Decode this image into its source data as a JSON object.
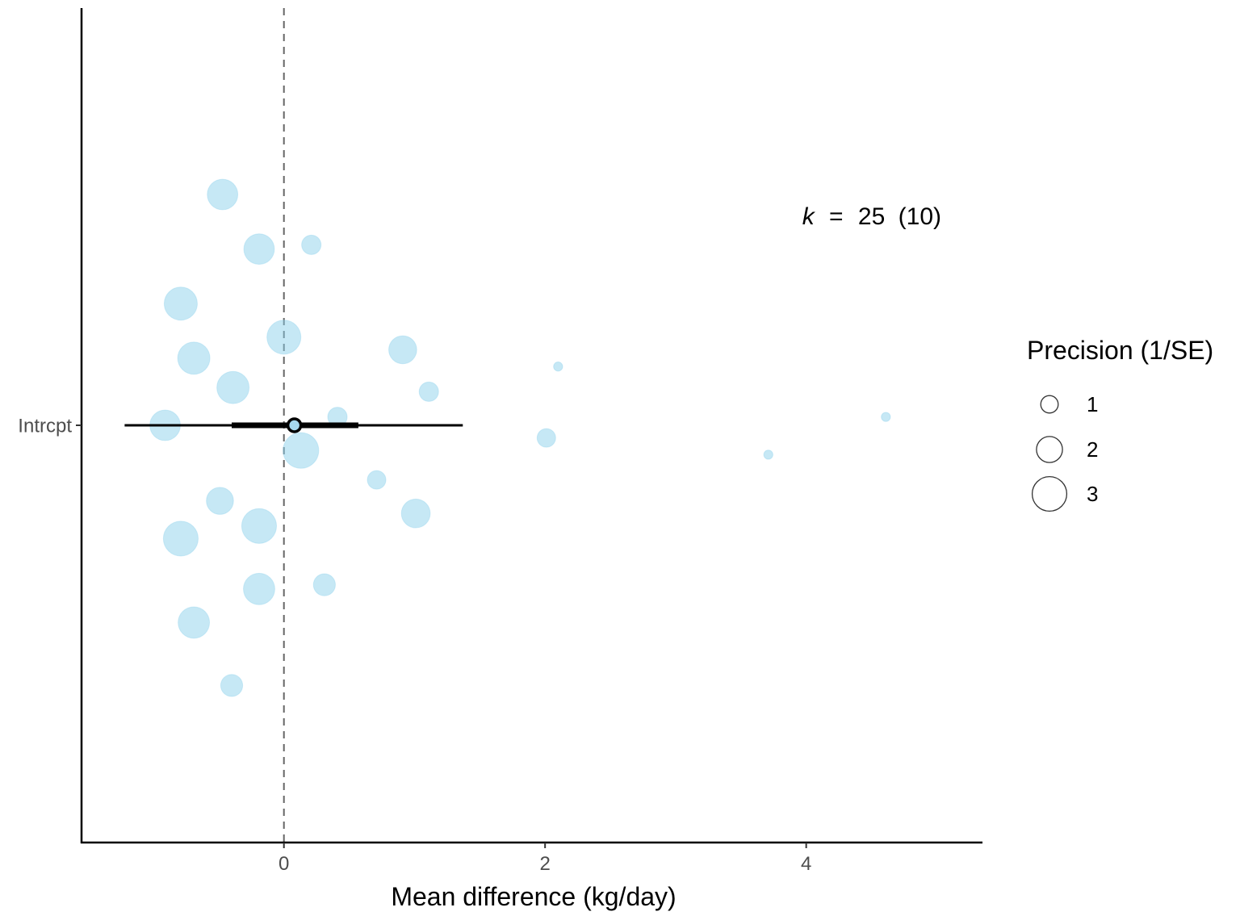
{
  "chart_data": {
    "type": "scatter",
    "subtype": "orchard plot",
    "xlabel": "Mean difference (kg/day)",
    "ylabel": "",
    "xlim": [
      -1.55,
      5.35
    ],
    "x_ticks": [
      0,
      2,
      4
    ],
    "x_tick_labels": [
      "0",
      "2",
      "4"
    ],
    "y_category": "Intrcpt",
    "reference_line_x": 0,
    "annotation": {
      "k_symbol": "k",
      "equals": "=",
      "k": "25",
      "groups": "(10)"
    },
    "estimate": {
      "x": 0.08,
      "ci": [
        -0.4,
        0.57
      ],
      "pi": [
        -1.22,
        1.37
      ]
    },
    "colors": {
      "points": "#87ceeb",
      "estimate_fill": "#a6d8ee",
      "axis": "#000000",
      "ref_line": "#666666"
    },
    "legend": {
      "title": "Precision (1/SE)",
      "items": [
        {
          "label": "1",
          "precision": 1
        },
        {
          "label": "2",
          "precision": 2
        },
        {
          "label": "3",
          "precision": 3
        }
      ],
      "placement": "right"
    },
    "points": [
      {
        "x": -0.47,
        "y_offset": 0.55,
        "precision": 3.0
      },
      {
        "x": -0.19,
        "y_offset": 0.42,
        "precision": 3.0
      },
      {
        "x": 0.21,
        "y_offset": 0.43,
        "precision": 1.7
      },
      {
        "x": -0.79,
        "y_offset": 0.29,
        "precision": 3.3
      },
      {
        "x": 0.0,
        "y_offset": 0.21,
        "precision": 3.4
      },
      {
        "x": -0.69,
        "y_offset": 0.16,
        "precision": 3.2
      },
      {
        "x": 0.91,
        "y_offset": 0.18,
        "precision": 2.7
      },
      {
        "x": 2.1,
        "y_offset": 0.14,
        "precision": 0.5
      },
      {
        "x": -0.39,
        "y_offset": 0.09,
        "precision": 3.2
      },
      {
        "x": 1.11,
        "y_offset": 0.08,
        "precision": 1.7
      },
      {
        "x": 0.41,
        "y_offset": 0.02,
        "precision": 1.7
      },
      {
        "x": -0.91,
        "y_offset": 0.0,
        "precision": 3.0
      },
      {
        "x": 4.61,
        "y_offset": 0.02,
        "precision": 0.5
      },
      {
        "x": 2.01,
        "y_offset": -0.03,
        "precision": 1.6
      },
      {
        "x": 0.13,
        "y_offset": -0.06,
        "precision": 3.6
      },
      {
        "x": 3.71,
        "y_offset": -0.07,
        "precision": 0.5
      },
      {
        "x": 0.71,
        "y_offset": -0.13,
        "precision": 1.6
      },
      {
        "x": -0.49,
        "y_offset": -0.18,
        "precision": 2.6
      },
      {
        "x": 1.01,
        "y_offset": -0.21,
        "precision": 2.8
      },
      {
        "x": -0.19,
        "y_offset": -0.24,
        "precision": 3.5
      },
      {
        "x": -0.79,
        "y_offset": -0.27,
        "precision": 3.5
      },
      {
        "x": -0.19,
        "y_offset": -0.39,
        "precision": 3.1
      },
      {
        "x": 0.31,
        "y_offset": -0.38,
        "precision": 2.0
      },
      {
        "x": -0.69,
        "y_offset": -0.47,
        "precision": 3.1
      },
      {
        "x": -0.4,
        "y_offset": -0.62,
        "precision": 2.0
      }
    ]
  }
}
